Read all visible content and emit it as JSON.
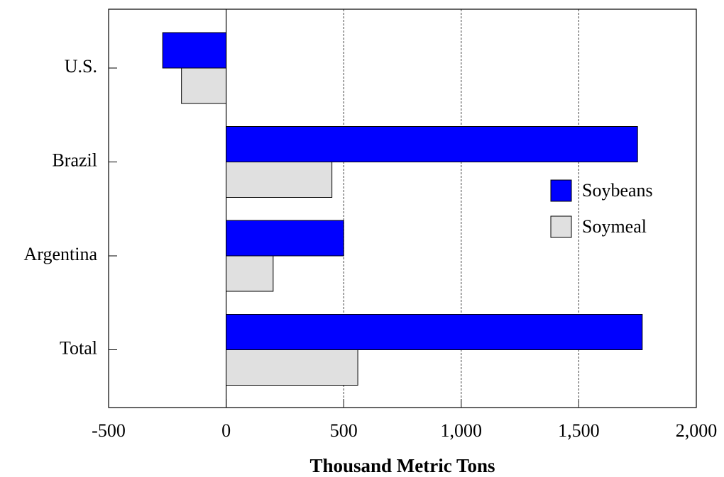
{
  "chart_data": {
    "type": "hbar",
    "x_label": "Thousand Metric Tons",
    "categories": [
      "U.S.",
      "Brazil",
      "Argentina",
      "Total"
    ],
    "series": [
      {
        "name": "Soybeans",
        "color": "#0000ff",
        "values": [
          -270,
          1750,
          500,
          1770
        ]
      },
      {
        "name": "Soymeal",
        "color": "#e0e0e0",
        "values": [
          -190,
          450,
          200,
          560
        ]
      }
    ],
    "xlim": [
      -500,
      2000
    ],
    "xticks": [
      -500,
      0,
      500,
      {
        "value": 1000,
        "label": "1,000"
      },
      {
        "value": 1500,
        "label": "1,500"
      },
      {
        "value": 2000,
        "label": "2,000"
      }
    ],
    "grid": true,
    "legend": "right"
  }
}
